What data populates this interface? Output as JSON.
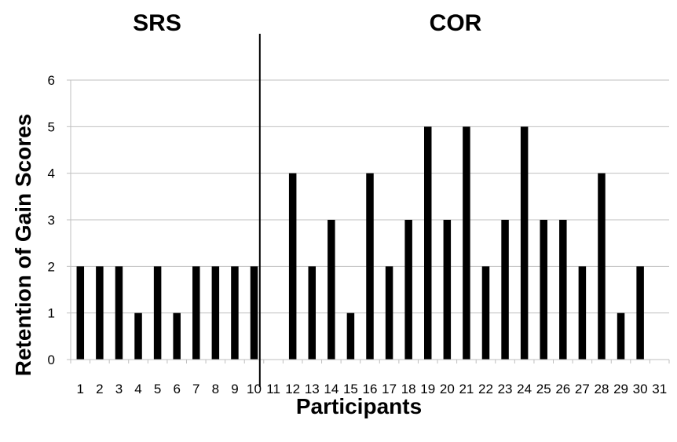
{
  "chart_data": {
    "type": "bar",
    "title": "",
    "xlabel": "Participants",
    "ylabel": "Retention of Gain Scores",
    "ylim": [
      0,
      6
    ],
    "yticks": [
      0,
      1,
      2,
      3,
      4,
      5,
      6
    ],
    "grid": true,
    "bar_color": "#000000",
    "grid_color": "#bfbfbf",
    "categories": [
      "1",
      "2",
      "3",
      "4",
      "5",
      "6",
      "7",
      "8",
      "9",
      "10",
      "11",
      "12",
      "13",
      "14",
      "15",
      "16",
      "17",
      "18",
      "19",
      "20",
      "21",
      "22",
      "23",
      "24",
      "25",
      "26",
      "27",
      "28",
      "29",
      "30",
      "31"
    ],
    "values": [
      2,
      2,
      2,
      1,
      2,
      1,
      2,
      2,
      2,
      2,
      null,
      4,
      2,
      3,
      1,
      4,
      2,
      3,
      5,
      3,
      5,
      2,
      3,
      5,
      3,
      3,
      2,
      4,
      1,
      2,
      null
    ],
    "groups": [
      {
        "label": "SRS",
        "from": "1",
        "to": "10"
      },
      {
        "label": "COR",
        "from": "11",
        "to": "31"
      }
    ]
  }
}
